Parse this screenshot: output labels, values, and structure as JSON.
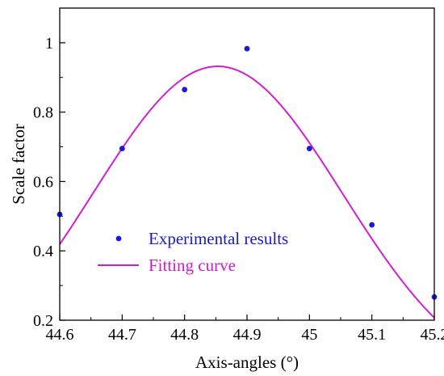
{
  "chart_data": {
    "type": "scatter",
    "xlabel": "Axis-angles (°)",
    "ylabel": "Scale factor",
    "xlim": [
      44.6,
      45.2
    ],
    "ylim": [
      0.2,
      1.1
    ],
    "x_ticks": [
      44.6,
      44.7,
      44.8,
      44.9,
      45,
      45.1,
      45.2
    ],
    "x_tick_labels": [
      "44.6",
      "44.7",
      "44.8",
      "44.9",
      "45",
      "45.1",
      "45.2"
    ],
    "y_ticks": [
      0.2,
      0.4,
      0.6,
      0.8,
      1.0
    ],
    "y_tick_labels": [
      "0.2",
      "0.4",
      "0.6",
      "0.8",
      "1"
    ],
    "grid": false,
    "legend_position": "bottom-left",
    "series": [
      {
        "name": "Experimental results",
        "kind": "scatter",
        "color": "#1a1adb",
        "x": [
          44.6,
          44.7,
          44.8,
          44.9,
          45.0,
          45.1,
          45.2
        ],
        "y": [
          0.505,
          0.695,
          0.865,
          0.983,
          0.695,
          0.475,
          0.267
        ]
      },
      {
        "name": "Fitting curve",
        "kind": "line",
        "color": "#d21ed2",
        "model": "gaussian",
        "amplitude": 0.932,
        "center": 44.853,
        "sigma": 0.2
      }
    ]
  }
}
